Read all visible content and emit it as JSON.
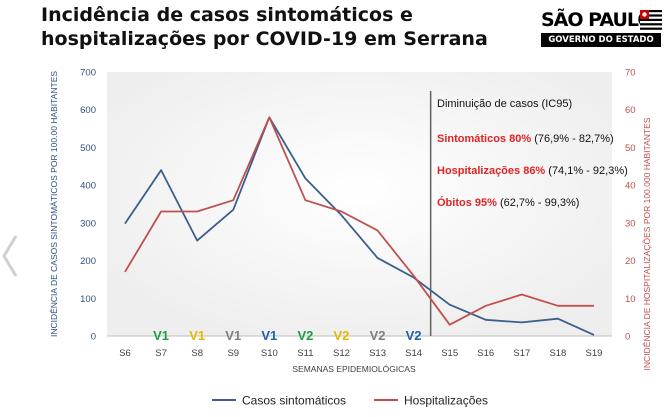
{
  "title_line1": "Incidência de casos sintomáticos e",
  "title_line2": "hospitalizações por COVID-19 em Serrana",
  "logo": {
    "line1": "SÃO PAULO",
    "line2": "GOVERNO DO ESTADO"
  },
  "colors": {
    "cases": "#3a5f8c",
    "hosp": "#c0504d",
    "v1": "#1e9e3f",
    "v2": "#1e9e3f",
    "y1": "#e6b800",
    "y2": "#e6b800",
    "gray": "#7f7f7f",
    "blue": "#1f5fa8",
    "red": "#e32222"
  },
  "annotation": {
    "header": "Diminuição de casos (IC95)",
    "rows": [
      {
        "label": "Sintomáticos 80%",
        "range": " (76,9% - 82,7%)"
      },
      {
        "label": "Hospitalizações 86%",
        "range": " (74,1% - 92,3%)"
      },
      {
        "label": "Óbitos 95%",
        "range": " (62,7% - 99,3%)"
      }
    ]
  },
  "chart_data": {
    "type": "line",
    "title": "",
    "categories": [
      "S6",
      "S7",
      "S8",
      "S9",
      "S10",
      "S11",
      "S12",
      "S13",
      "S14",
      "S15",
      "S16",
      "S17",
      "S18",
      "S19"
    ],
    "xlabel": "SEMANAS EPIDEMIOLÓGICAS",
    "ylabel_left": "INCIDÊNCIA DE CASOS SINTOMÁTICOS POR 100.00 HABITANTES",
    "ylabel_right": "INCIDÊNCIA DE HOSPITALIZAÇÕES POR 100.000 HABITANTES",
    "ylim_left": [
      0,
      700
    ],
    "yticks_left": [
      "0",
      "100",
      "200",
      "300",
      "400",
      "500",
      "600",
      "700"
    ],
    "ylim_right": [
      0,
      70
    ],
    "yticks_right": [
      "0",
      "10",
      "20",
      "30",
      "40",
      "50",
      "60",
      "70"
    ],
    "divider_after": "S14",
    "series": [
      {
        "name": "Casos sintomáticos",
        "axis": "left",
        "values": [
          298,
          440,
          253,
          335,
          580,
          418,
          320,
          207,
          155,
          83,
          43,
          36,
          46,
          3
        ]
      },
      {
        "name": "Hospitalizações",
        "axis": "right",
        "values": [
          17,
          33,
          33,
          36,
          58,
          36,
          33,
          28,
          16,
          3,
          8,
          11,
          8,
          8
        ]
      }
    ],
    "vaccine_markers": [
      {
        "week": "S7",
        "label": "V1",
        "color": "#1e9e3f"
      },
      {
        "week": "S8",
        "label": "V1",
        "color": "#e6b800"
      },
      {
        "week": "S9",
        "label": "V1",
        "color": "#7f7f7f"
      },
      {
        "week": "S10",
        "label": "V1",
        "color": "#1f5fa8"
      },
      {
        "week": "S11",
        "label": "V2",
        "color": "#1e9e3f"
      },
      {
        "week": "S12",
        "label": "V2",
        "color": "#e6b800"
      },
      {
        "week": "S13",
        "label": "V2",
        "color": "#7f7f7f"
      },
      {
        "week": "S14",
        "label": "V2",
        "color": "#1f5fa8"
      }
    ],
    "grid": false,
    "legend_position": "bottom"
  }
}
